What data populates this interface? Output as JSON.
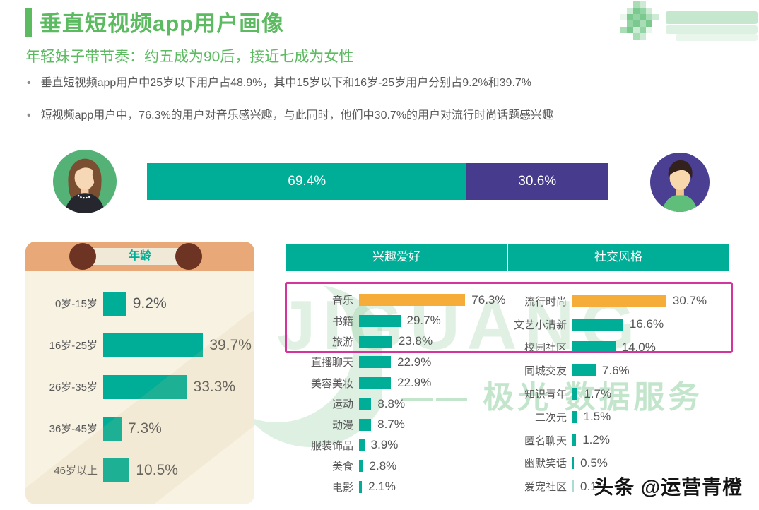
{
  "page": {
    "title": "垂直短视频app用户画像",
    "subtitle": "年轻妹子带节奏：约五成为90后，接近七成为女性",
    "bullets": [
      "垂直短视频app用户中25岁以下用户占48.9%，其中15岁以下和16岁-25岁用户分别占9.2%和39.7%",
      "短视频app用户中，76.3%的用户对音乐感兴趣，与此同时，他们中30.7%的用户对流行时尚话题感兴趣"
    ],
    "bullet_glyph": "•",
    "credit": "头条 @运营青橙"
  },
  "watermark": {
    "brand": "JIGUANG",
    "caption": "—— 极光 数据服务"
  },
  "chart_data": [
    {
      "name": "gender-share",
      "type": "bar",
      "stacked": true,
      "categories": [
        "女性",
        "男性"
      ],
      "values": [
        69.4,
        30.6
      ],
      "labels": [
        "69.4%",
        "30.6%"
      ],
      "colors": [
        "#00AE97",
        "#463B8C"
      ]
    },
    {
      "name": "age-distribution",
      "type": "bar",
      "title": "年龄",
      "categories": [
        "0岁-15岁",
        "16岁-25岁",
        "26岁-35岁",
        "36岁-45岁",
        "46岁以上"
      ],
      "values": [
        9.2,
        39.7,
        33.3,
        7.3,
        10.5
      ],
      "labels": [
        "9.2%",
        "39.7%",
        "33.3%",
        "7.3%",
        "10.5%"
      ],
      "colors": [
        "#00AE97",
        "#00AE97",
        "#00AE97",
        "#00AE97",
        "#00AE97"
      ]
    },
    {
      "name": "interests",
      "type": "bar",
      "title": "兴趣爱好",
      "categories": [
        "音乐",
        "书籍",
        "旅游",
        "直播聊天",
        "美容美妆",
        "运动",
        "动漫",
        "服装饰品",
        "美食",
        "电影"
      ],
      "values": [
        76.3,
        29.7,
        23.8,
        22.9,
        22.9,
        8.8,
        8.7,
        3.9,
        2.8,
        2.1
      ],
      "labels": [
        "76.3%",
        "29.7%",
        "23.8%",
        "22.9%",
        "22.9%",
        "8.8%",
        "8.7%",
        "3.9%",
        "2.8%",
        "2.1%"
      ],
      "colors": [
        "#F6AC38",
        "#00AE97",
        "#00AE97",
        "#00AE97",
        "#00AE97",
        "#00AE97",
        "#00AE97",
        "#00AE97",
        "#00AE97",
        "#00AE97"
      ]
    },
    {
      "name": "social-style",
      "type": "bar",
      "title": "社交风格",
      "categories": [
        "流行时尚",
        "文艺小清新",
        "校园社区",
        "同城交友",
        "知识青年",
        "二次元",
        "匿名聊天",
        "幽默笑话",
        "爱宠社区"
      ],
      "values": [
        30.7,
        16.6,
        14.0,
        7.6,
        1.7,
        1.5,
        1.2,
        0.5,
        0.1
      ],
      "labels": [
        "30.7%",
        "16.6%",
        "14.0%",
        "7.6%",
        "1.7%",
        "1.5%",
        "1.2%",
        "0.5%",
        "0.1%"
      ],
      "colors": [
        "#F6AC38",
        "#00AE97",
        "#00AE97",
        "#00AE97",
        "#00AE97",
        "#00AE97",
        "#00AE97",
        "#00AE97",
        "#A8DCD4"
      ]
    }
  ],
  "colors": {
    "accent_green": "#5CBB60",
    "teal": "#00AE97",
    "purple": "#463B8C",
    "orange": "#F6AC38",
    "magenta": "#D4359C",
    "panel_salmon": "#E8A878",
    "panel_cream": "#F8F2E2",
    "panel_ring_brown": "#6E3423",
    "text_gray": "#595959"
  }
}
